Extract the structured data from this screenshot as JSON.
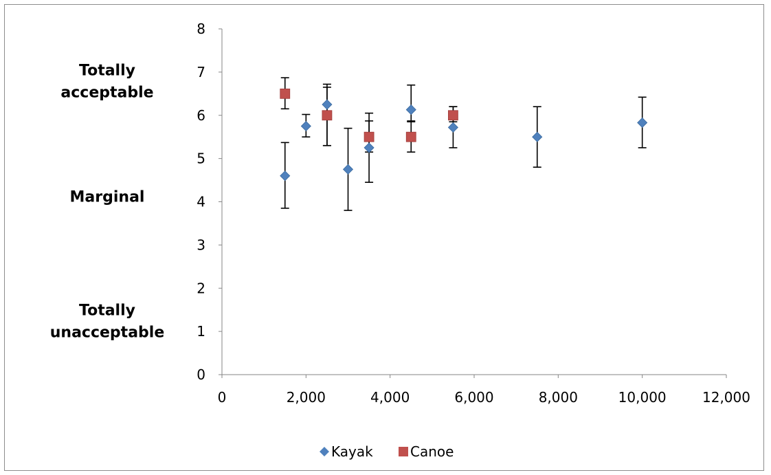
{
  "chart_data": {
    "type": "scatter",
    "title": "",
    "xlabel": "",
    "ylabel": "",
    "xlim": [
      0,
      12000
    ],
    "ylim": [
      0,
      8
    ],
    "x_ticks": [
      0,
      2000,
      4000,
      6000,
      8000,
      10000,
      12000
    ],
    "x_tick_labels": [
      "0",
      "2,000",
      "4,000",
      "6,000",
      "8,000",
      "10,000",
      "12,000"
    ],
    "y_ticks": [
      0,
      1,
      2,
      3,
      4,
      5,
      6,
      7,
      8
    ],
    "y_tick_labels": [
      "0",
      "1",
      "2",
      "3",
      "4",
      "5",
      "6",
      "7",
      "8"
    ],
    "grid": false,
    "legend_position": "bottom",
    "category_labels": [
      {
        "text": "Totally acceptable",
        "lines": [
          "Totally",
          "acceptable"
        ],
        "y": 6.8
      },
      {
        "text": "Marginal",
        "lines": [
          "Marginal"
        ],
        "y": 4.13
      },
      {
        "text": "Totally unacceptable",
        "lines": [
          "Totally",
          "unacceptable"
        ],
        "y": 1.25
      }
    ],
    "series": [
      {
        "name": "Kayak",
        "marker": "diamond",
        "color": "#4f81bd",
        "points": [
          {
            "x": 1500,
            "y": 4.6,
            "err_low": 3.85,
            "err_high": 5.37
          },
          {
            "x": 2000,
            "y": 5.75,
            "err_low": 5.5,
            "err_high": 6.02
          },
          {
            "x": 2500,
            "y": 6.25,
            "err_low": 5.3,
            "err_high": 6.72
          },
          {
            "x": 3000,
            "y": 4.75,
            "err_low": 3.8,
            "err_high": 5.7
          },
          {
            "x": 3500,
            "y": 5.25,
            "err_low": 4.45,
            "err_high": 6.05
          },
          {
            "x": 4500,
            "y": 6.13,
            "err_low": 5.85,
            "err_high": 6.7
          },
          {
            "x": 5500,
            "y": 5.72,
            "err_low": 5.25,
            "err_high": 6.2
          },
          {
            "x": 7500,
            "y": 5.5,
            "err_low": 4.8,
            "err_high": 6.2
          },
          {
            "x": 10000,
            "y": 5.83,
            "err_low": 5.25,
            "err_high": 6.42
          }
        ]
      },
      {
        "name": "Canoe",
        "marker": "square",
        "color": "#c0504d",
        "points": [
          {
            "x": 1500,
            "y": 6.5,
            "err_low": 6.15,
            "err_high": 6.87
          },
          {
            "x": 2500,
            "y": 6.0,
            "err_low": 5.3,
            "err_high": 6.65
          },
          {
            "x": 3500,
            "y": 5.5,
            "err_low": 5.15,
            "err_high": 5.87
          },
          {
            "x": 4500,
            "y": 5.5,
            "err_low": 5.15,
            "err_high": 5.87
          },
          {
            "x": 5500,
            "y": 6.0,
            "err_low": 5.85,
            "err_high": 6.2
          }
        ]
      }
    ]
  }
}
